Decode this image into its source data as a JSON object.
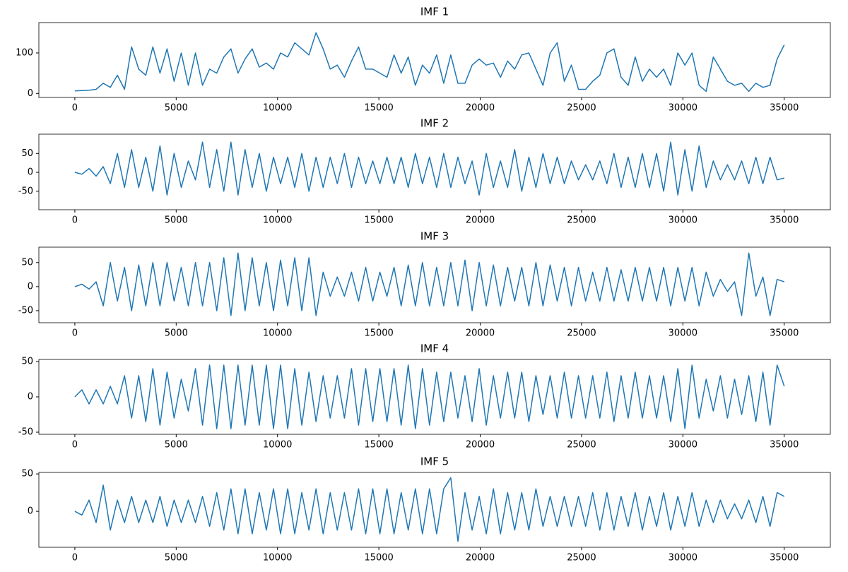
{
  "chart_data": [
    {
      "type": "line",
      "title": "IMF 1",
      "color": "#1f77b4",
      "x": [
        0,
        350,
        700,
        1050,
        1400,
        1750,
        2100,
        2450,
        2800,
        3150,
        3500,
        3850,
        4200,
        4550,
        4900,
        5250,
        5600,
        5950,
        6300,
        6650,
        7000,
        7350,
        7700,
        8050,
        8400,
        8750,
        9100,
        9450,
        9800,
        10150,
        10500,
        10850,
        11200,
        11550,
        11900,
        12250,
        12600,
        12950,
        13300,
        13650,
        14000,
        14350,
        14700,
        15050,
        15400,
        15750,
        16100,
        16450,
        16800,
        17150,
        17500,
        17850,
        18200,
        18550,
        18900,
        19250,
        19600,
        19950,
        20300,
        20650,
        21000,
        21350,
        21700,
        22050,
        22400,
        22750,
        23100,
        23450,
        23800,
        24150,
        24500,
        24850,
        25200,
        25550,
        25900,
        26250,
        26600,
        26950,
        27300,
        27650,
        28000,
        28350,
        28700,
        29050,
        29400,
        29750,
        30100,
        30450,
        30800,
        31150,
        31500,
        31850,
        32200,
        32550,
        32900,
        33250,
        33600,
        33950,
        34300,
        34650,
        35000
      ],
      "values": [
        6,
        7,
        8,
        10,
        25,
        15,
        45,
        10,
        115,
        60,
        45,
        115,
        50,
        110,
        30,
        100,
        20,
        100,
        20,
        60,
        50,
        90,
        110,
        50,
        85,
        110,
        65,
        75,
        60,
        100,
        90,
        125,
        110,
        95,
        150,
        110,
        60,
        70,
        40,
        80,
        115,
        60,
        60,
        50,
        40,
        95,
        50,
        90,
        20,
        70,
        50,
        95,
        25,
        95,
        25,
        25,
        70,
        85,
        70,
        75,
        40,
        80,
        60,
        95,
        100,
        60,
        20,
        100,
        125,
        30,
        70,
        10,
        10,
        30,
        45,
        100,
        110,
        40,
        20,
        90,
        30,
        60,
        40,
        60,
        20,
        100,
        70,
        100,
        20,
        5,
        90,
        60,
        30,
        20,
        25,
        5,
        25,
        15,
        20,
        85,
        120
      ],
      "xlim": [
        -1775,
        37275
      ],
      "xticks": [
        0,
        5000,
        10000,
        15000,
        20000,
        25000,
        30000,
        35000
      ],
      "ylim": [
        -10,
        175
      ],
      "yticks": [
        0,
        100
      ]
    },
    {
      "type": "line",
      "title": "IMF 2",
      "color": "#1f77b4",
      "x": [
        0,
        350,
        700,
        1050,
        1400,
        1750,
        2100,
        2450,
        2800,
        3150,
        3500,
        3850,
        4200,
        4550,
        4900,
        5250,
        5600,
        5950,
        6300,
        6650,
        7000,
        7350,
        7700,
        8050,
        8400,
        8750,
        9100,
        9450,
        9800,
        10150,
        10500,
        10850,
        11200,
        11550,
        11900,
        12250,
        12600,
        12950,
        13300,
        13650,
        14000,
        14350,
        14700,
        15050,
        15400,
        15750,
        16100,
        16450,
        16800,
        17150,
        17500,
        17850,
        18200,
        18550,
        18900,
        19250,
        19600,
        19950,
        20300,
        20650,
        21000,
        21350,
        21700,
        22050,
        22400,
        22750,
        23100,
        23450,
        23800,
        24150,
        24500,
        24850,
        25200,
        25550,
        25900,
        26250,
        26600,
        26950,
        27300,
        27650,
        28000,
        28350,
        28700,
        29050,
        29400,
        29750,
        30100,
        30450,
        30800,
        31150,
        31500,
        31850,
        32200,
        32550,
        32900,
        33250,
        33600,
        33950,
        34300,
        34650,
        35000
      ],
      "values": [
        0,
        -5,
        10,
        -10,
        15,
        -30,
        50,
        -40,
        60,
        -40,
        40,
        -50,
        70,
        -60,
        50,
        -40,
        30,
        -20,
        80,
        -40,
        60,
        -50,
        80,
        -60,
        60,
        -40,
        50,
        -50,
        40,
        -30,
        40,
        -40,
        50,
        -50,
        40,
        -40,
        40,
        -30,
        50,
        -40,
        40,
        -30,
        30,
        -30,
        40,
        -30,
        40,
        -40,
        50,
        -30,
        40,
        -40,
        50,
        -40,
        40,
        -30,
        30,
        -60,
        50,
        -40,
        30,
        -40,
        60,
        -50,
        40,
        -40,
        50,
        -30,
        40,
        -30,
        30,
        -20,
        20,
        -20,
        30,
        -30,
        50,
        -40,
        40,
        -40,
        50,
        -40,
        50,
        -50,
        80,
        -60,
        60,
        -50,
        70,
        -40,
        30,
        -20,
        20,
        -20,
        30,
        -30,
        40,
        -30,
        40,
        -20,
        -15
      ],
      "xlim": [
        -1775,
        37275
      ],
      "xticks": [
        0,
        5000,
        10000,
        15000,
        20000,
        25000,
        30000,
        35000
      ],
      "ylim": [
        -99,
        101
      ],
      "yticks": [
        -50,
        0,
        50
      ]
    },
    {
      "type": "line",
      "title": "IMF 3",
      "color": "#1f77b4",
      "x": [
        0,
        350,
        700,
        1050,
        1400,
        1750,
        2100,
        2450,
        2800,
        3150,
        3500,
        3850,
        4200,
        4550,
        4900,
        5250,
        5600,
        5950,
        6300,
        6650,
        7000,
        7350,
        7700,
        8050,
        8400,
        8750,
        9100,
        9450,
        9800,
        10150,
        10500,
        10850,
        11200,
        11550,
        11900,
        12250,
        12600,
        12950,
        13300,
        13650,
        14000,
        14350,
        14700,
        15050,
        15400,
        15750,
        16100,
        16450,
        16800,
        17150,
        17500,
        17850,
        18200,
        18550,
        18900,
        19250,
        19600,
        19950,
        20300,
        20650,
        21000,
        21350,
        21700,
        22050,
        22400,
        22750,
        23100,
        23450,
        23800,
        24150,
        24500,
        24850,
        25200,
        25550,
        25900,
        26250,
        26600,
        26950,
        27300,
        27650,
        28000,
        28350,
        28700,
        29050,
        29400,
        29750,
        30100,
        30450,
        30800,
        31150,
        31500,
        31850,
        32200,
        32550,
        32900,
        33250,
        33600,
        33950,
        34300,
        34650,
        35000
      ],
      "values": [
        0,
        5,
        -5,
        10,
        -40,
        50,
        -30,
        40,
        -50,
        45,
        -40,
        50,
        -40,
        50,
        -30,
        40,
        -40,
        50,
        -40,
        50,
        -50,
        60,
        -60,
        70,
        -50,
        60,
        -40,
        50,
        -50,
        55,
        -40,
        60,
        -50,
        60,
        -60,
        30,
        -20,
        20,
        -20,
        30,
        -30,
        40,
        -30,
        30,
        -20,
        40,
        -40,
        45,
        -40,
        50,
        -40,
        40,
        -40,
        50,
        -40,
        55,
        -50,
        50,
        -40,
        45,
        -40,
        40,
        -30,
        40,
        -40,
        50,
        -40,
        45,
        -30,
        40,
        -40,
        40,
        -30,
        30,
        -30,
        40,
        -30,
        35,
        -30,
        40,
        -30,
        40,
        -30,
        40,
        -40,
        40,
        -30,
        40,
        -40,
        30,
        -20,
        15,
        -10,
        10,
        -60,
        70,
        -20,
        20,
        -60,
        15,
        10
      ],
      "xlim": [
        -1775,
        37275
      ],
      "xticks": [
        0,
        5000,
        10000,
        15000,
        20000,
        25000,
        30000,
        35000
      ],
      "ylim": [
        -75,
        82
      ],
      "yticks": [
        -50,
        0,
        50
      ]
    },
    {
      "type": "line",
      "title": "IMF 4",
      "color": "#1f77b4",
      "x": [
        0,
        350,
        700,
        1050,
        1400,
        1750,
        2100,
        2450,
        2800,
        3150,
        3500,
        3850,
        4200,
        4550,
        4900,
        5250,
        5600,
        5950,
        6300,
        6650,
        7000,
        7350,
        7700,
        8050,
        8400,
        8750,
        9100,
        9450,
        9800,
        10150,
        10500,
        10850,
        11200,
        11550,
        11900,
        12250,
        12600,
        12950,
        13300,
        13650,
        14000,
        14350,
        14700,
        15050,
        15400,
        15750,
        16100,
        16450,
        16800,
        17150,
        17500,
        17850,
        18200,
        18550,
        18900,
        19250,
        19600,
        19950,
        20300,
        20650,
        21000,
        21350,
        21700,
        22050,
        22400,
        22750,
        23100,
        23450,
        23800,
        24150,
        24500,
        24850,
        25200,
        25550,
        25900,
        26250,
        26600,
        26950,
        27300,
        27650,
        28000,
        28350,
        28700,
        29050,
        29400,
        29750,
        30100,
        30450,
        30800,
        31150,
        31500,
        31850,
        32200,
        32550,
        32900,
        33250,
        33600,
        33950,
        34300,
        34650,
        35000
      ],
      "values": [
        0,
        10,
        -10,
        10,
        -10,
        15,
        -10,
        30,
        -30,
        30,
        -35,
        40,
        -40,
        35,
        -30,
        25,
        -20,
        40,
        -40,
        45,
        -45,
        45,
        -45,
        45,
        -40,
        45,
        -40,
        45,
        -45,
        45,
        -45,
        40,
        -40,
        35,
        -35,
        30,
        -30,
        30,
        -30,
        40,
        -40,
        40,
        -35,
        40,
        -35,
        40,
        -40,
        45,
        -45,
        40,
        -40,
        35,
        -35,
        35,
        -30,
        30,
        -35,
        40,
        -40,
        30,
        -30,
        35,
        -30,
        35,
        -35,
        30,
        -25,
        30,
        -30,
        35,
        -30,
        30,
        -30,
        30,
        -30,
        35,
        -35,
        30,
        -30,
        35,
        -30,
        30,
        -30,
        30,
        -35,
        40,
        -45,
        45,
        -30,
        25,
        -20,
        30,
        -30,
        25,
        -25,
        30,
        -35,
        35,
        -40,
        45,
        15
      ],
      "xlim": [
        -1775,
        37275
      ],
      "xticks": [
        0,
        5000,
        10000,
        15000,
        20000,
        25000,
        30000,
        35000
      ],
      "ylim": [
        -53,
        53
      ],
      "yticks": [
        -50,
        0,
        50
      ]
    },
    {
      "type": "line",
      "title": "IMF 5",
      "color": "#1f77b4",
      "x": [
        0,
        350,
        700,
        1050,
        1400,
        1750,
        2100,
        2450,
        2800,
        3150,
        3500,
        3850,
        4200,
        4550,
        4900,
        5250,
        5600,
        5950,
        6300,
        6650,
        7000,
        7350,
        7700,
        8050,
        8400,
        8750,
        9100,
        9450,
        9800,
        10150,
        10500,
        10850,
        11200,
        11550,
        11900,
        12250,
        12600,
        12950,
        13300,
        13650,
        14000,
        14350,
        14700,
        15050,
        15400,
        15750,
        16100,
        16450,
        16800,
        17150,
        17500,
        17850,
        18200,
        18550,
        18900,
        19250,
        19600,
        19950,
        20300,
        20650,
        21000,
        21350,
        21700,
        22050,
        22400,
        22750,
        23100,
        23450,
        23800,
        24150,
        24500,
        24850,
        25200,
        25550,
        25900,
        26250,
        26600,
        26950,
        27300,
        27650,
        28000,
        28350,
        28700,
        29050,
        29400,
        29750,
        30100,
        30450,
        30800,
        31150,
        31500,
        31850,
        32200,
        32550,
        32900,
        33250,
        33600,
        33950,
        34300,
        34650,
        35000
      ],
      "values": [
        0,
        -5,
        15,
        -15,
        35,
        -25,
        15,
        -15,
        20,
        -15,
        15,
        -15,
        20,
        -20,
        15,
        -15,
        15,
        -15,
        20,
        -20,
        25,
        -25,
        30,
        -30,
        30,
        -30,
        25,
        -25,
        30,
        -30,
        30,
        -30,
        25,
        -25,
        30,
        -30,
        25,
        -25,
        25,
        -25,
        30,
        -30,
        30,
        -30,
        30,
        -30,
        25,
        -25,
        30,
        -30,
        30,
        -30,
        30,
        45,
        -40,
        25,
        -25,
        20,
        -30,
        30,
        -30,
        25,
        -25,
        25,
        -25,
        30,
        -20,
        20,
        -20,
        20,
        -20,
        20,
        -20,
        25,
        -25,
        25,
        -25,
        20,
        -20,
        25,
        -25,
        20,
        -20,
        25,
        -25,
        20,
        -20,
        25,
        -20,
        15,
        -15,
        15,
        -10,
        10,
        -10,
        15,
        -15,
        20,
        -20,
        25,
        20
      ],
      "xlim": [
        -1775,
        37275
      ],
      "xticks": [
        0,
        5000,
        10000,
        15000,
        20000,
        25000,
        30000,
        35000
      ],
      "ylim": [
        -48,
        52
      ],
      "yticks": [
        0,
        50
      ]
    }
  ]
}
